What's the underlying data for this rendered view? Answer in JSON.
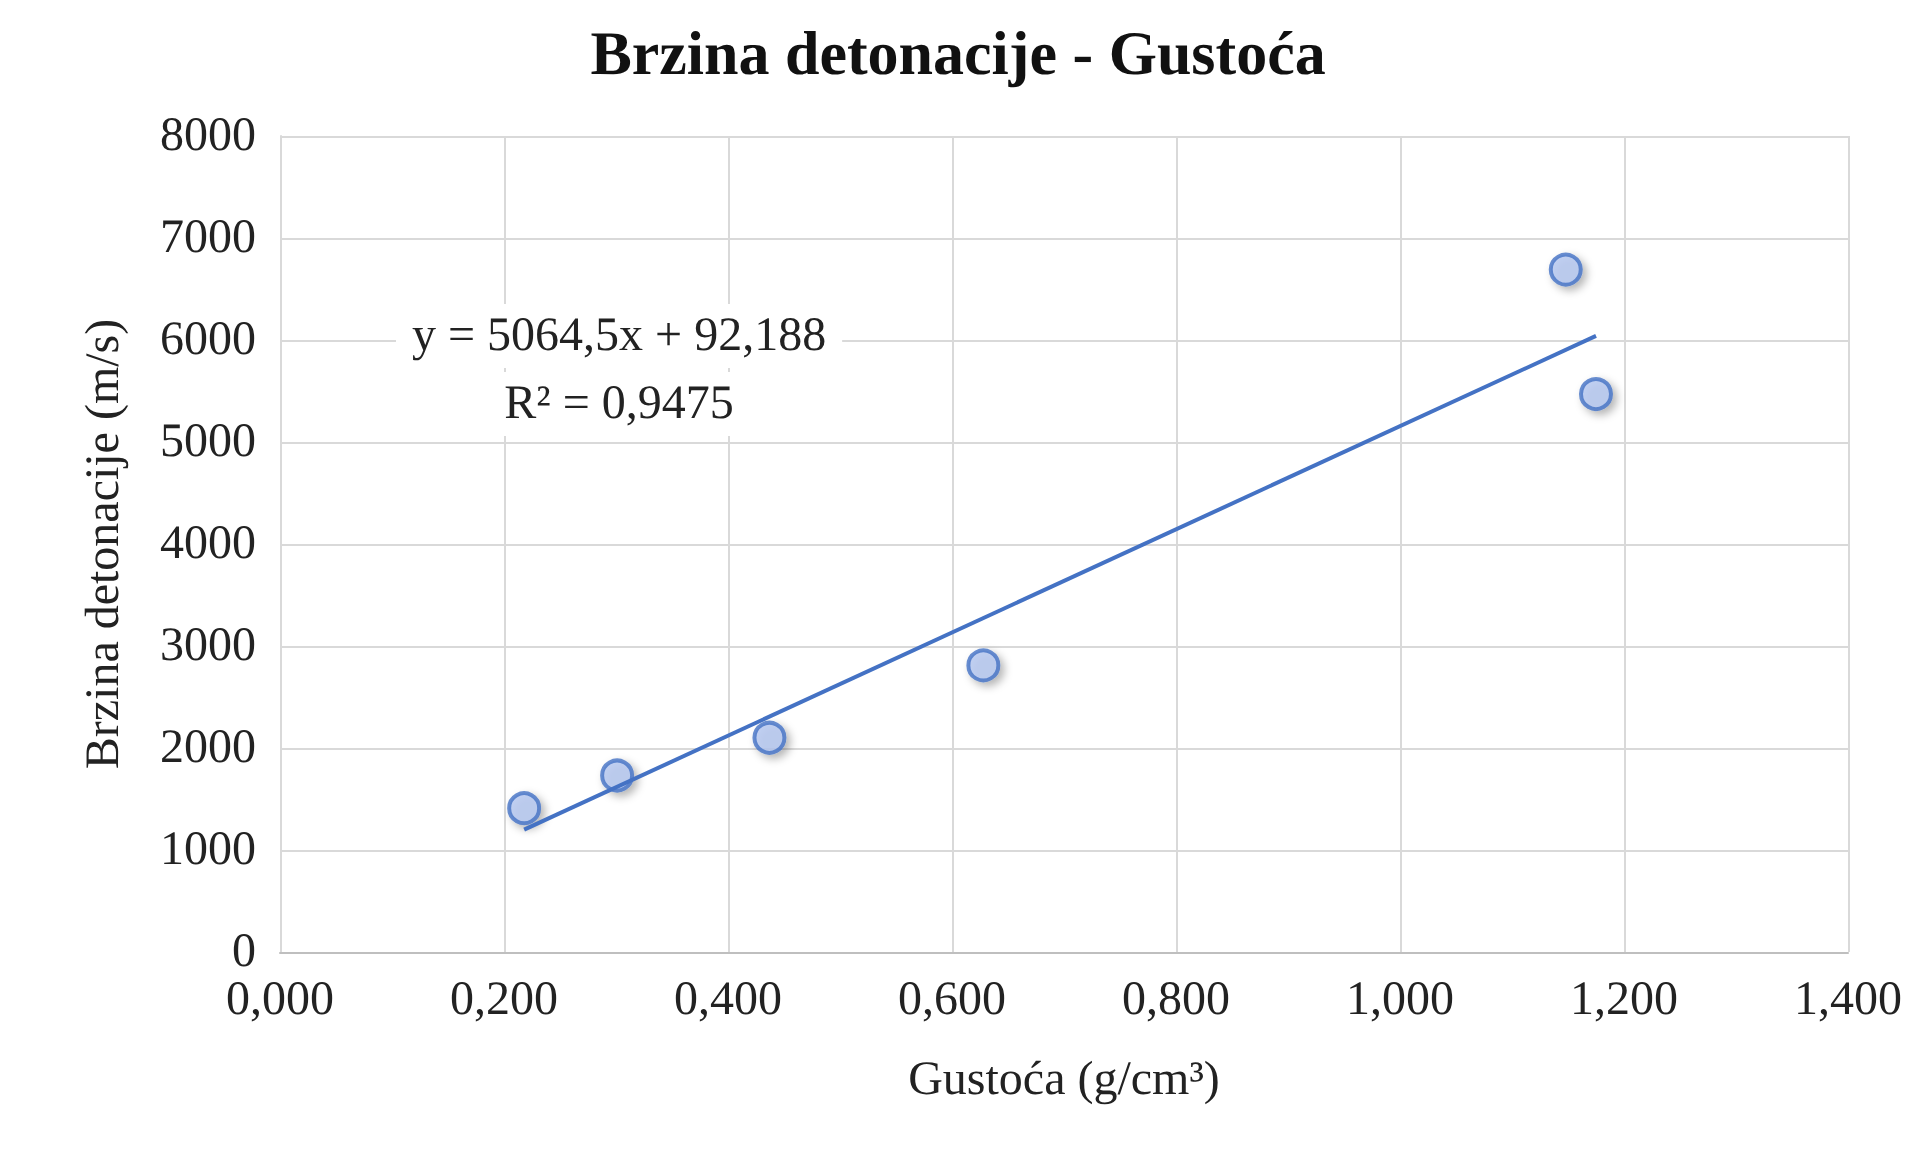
{
  "chart_data": {
    "type": "scatter",
    "title": "Brzina detonacije - Gustoća",
    "xlabel": "Gustoća (g/cm³)",
    "ylabel": "Brzina detonacije (m/s)",
    "series": [
      {
        "color": "#b4c7f0",
        "x": [
          0.218,
          0.301,
          0.437,
          0.628,
          1.148,
          1.175
        ],
        "values": [
          1410,
          1730,
          2100,
          2810,
          6690,
          5470
        ]
      },
      {
        "type": "line",
        "marker": "none",
        "color": "#4472c4",
        "x": [
          0.218,
          1.175
        ],
        "values": [
          1200,
          6040
        ]
      }
    ],
    "annotations": [
      "y = 5064,5x + 92,188",
      "R² = 0,9475"
    ],
    "xlim": [
      0,
      1.4
    ],
    "xticks": [
      {
        "value": 0,
        "label": "0,000"
      },
      {
        "value": 0.2,
        "label": "0,200"
      },
      {
        "value": 0.4,
        "label": "0,400"
      },
      {
        "value": 0.6,
        "label": "0,600"
      },
      {
        "value": 0.8,
        "label": "0,800"
      },
      {
        "value": 1.0,
        "label": "1,000"
      },
      {
        "value": 1.2,
        "label": "1,200"
      },
      {
        "value": 1.4,
        "label": "1,400"
      }
    ],
    "ylim": [
      0,
      8000
    ],
    "yticks": [
      0,
      1000,
      2000,
      3000,
      4000,
      5000,
      6000,
      7000,
      8000
    ],
    "grid": true,
    "marker": "circle",
    "line_style": "solid"
  }
}
